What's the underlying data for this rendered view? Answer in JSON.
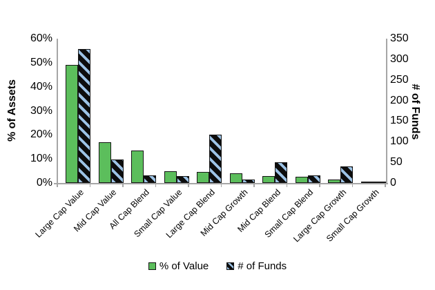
{
  "chart_data": {
    "type": "bar",
    "dual_axis": true,
    "grid": false,
    "legend_position": "bottom",
    "categories": [
      "Large Cap Value",
      "Mid Cap Value",
      "All Cap Blend",
      "Small Cap Value",
      "Large Cap Blend",
      "Mid Cap Growth",
      "Mid Cap Blend",
      "Small Cap Blend",
      "Large Cap Growth",
      "Small Cap Growth"
    ],
    "series": [
      {
        "name": "% of Value",
        "axis": "left",
        "style": "solid",
        "color": "#5cbe5c",
        "values": [
          49,
          17,
          13.5,
          5,
          4.5,
          4,
          3,
          2.5,
          1.5,
          0.3
        ]
      },
      {
        "name": "# of Funds",
        "axis": "right",
        "style": "hatched",
        "background_color": "#0d0d0d",
        "stripe_color": "#9dc3e6",
        "values": [
          325,
          57,
          19,
          16,
          117,
          8,
          50,
          18,
          40,
          4
        ]
      }
    ],
    "left_axis": {
      "label": "% of Assets",
      "min": 0,
      "max": 60,
      "tick_values": [
        0,
        10,
        20,
        30,
        40,
        50,
        60
      ],
      "ticks": [
        "0%",
        "10%",
        "20%",
        "30%",
        "40%",
        "50%",
        "60%"
      ]
    },
    "right_axis": {
      "label": "# of Funds",
      "min": 0,
      "max": 350,
      "tick_values": [
        0,
        50,
        100,
        150,
        200,
        250,
        300,
        350
      ],
      "ticks": [
        "0",
        "50",
        "100",
        "150",
        "200",
        "250",
        "300",
        "350"
      ]
    },
    "legend": [
      "% of Value",
      "# of Funds"
    ]
  }
}
